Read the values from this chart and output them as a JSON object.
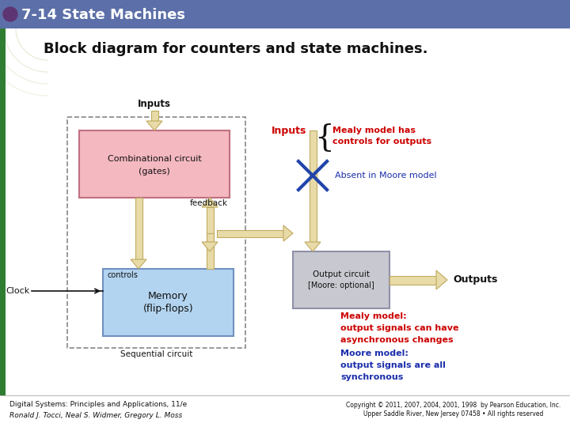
{
  "title_bar_color": "#5c6fa8",
  "title_text": "7-14 State Machines",
  "title_color": "white",
  "subtitle": "Block diagram for counters and state machines.",
  "bg_color": "#ffffff",
  "green_bar_color": "#2e7d32",
  "purple_circle_color": "#5e3573",
  "comb_box_color": "#f4b8c1",
  "comb_box_edge": "#c07080",
  "mem_box_color": "#b3d4f0",
  "mem_box_edge": "#7090c0",
  "out_box_color": "#c8c8d0",
  "out_box_edge": "#9090a8",
  "seq_box_edge": "#888888",
  "arrow_color": "#e8dba8",
  "arrow_edge": "#c0aa60",
  "red_text": "#cc0000",
  "blue_text": "#1a2eaa",
  "dark_text": "#111111",
  "footer_text1": "Digital Systems: Principles and Applications, 11/e",
  "footer_text2": "Ronald J. Tocci, Neal S. Widmer, Gregory L. Moss",
  "footer_right": "Copyright © 2011, 2007, 2004, 2001, 1998  by Pearson Education, Inc.\nUpper Saddle River, New Jersey 07458 • All rights reserved"
}
